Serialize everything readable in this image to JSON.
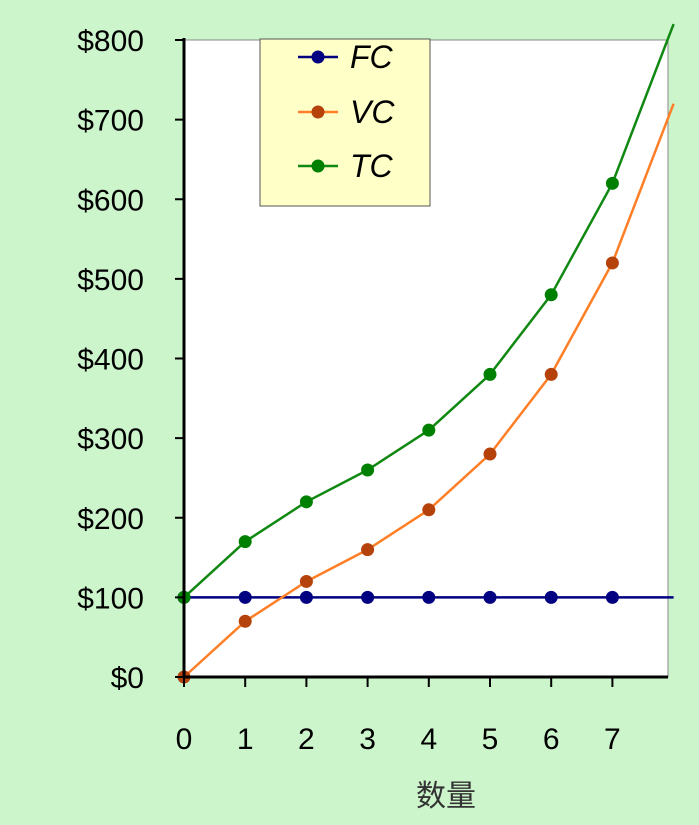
{
  "chart_data": {
    "type": "line",
    "xlabel": "数量",
    "ylabel": "",
    "x": [
      0,
      1,
      2,
      3,
      4,
      5,
      6,
      7
    ],
    "xlim": [
      0,
      8
    ],
    "ylim": [
      0,
      800
    ],
    "ytick_values": [
      0,
      100,
      200,
      300,
      400,
      500,
      600,
      700,
      800
    ],
    "ytick_labels": [
      "$0",
      "$100",
      "$200",
      "$300",
      "$400",
      "$500",
      "$600",
      "$700",
      "$800"
    ],
    "xtick_labels": [
      "0",
      "1",
      "2",
      "3",
      "4",
      "5",
      "6",
      "7"
    ],
    "grid": false,
    "legend_position": "top-left",
    "series": [
      {
        "name": "FC",
        "color": "#000080",
        "values": [
          100,
          100,
          100,
          100,
          100,
          100,
          100,
          100
        ],
        "line_extension": [
          8,
          100
        ]
      },
      {
        "name": "VC",
        "color": "#ff7f27",
        "marker_color": "#b5410b",
        "values": [
          0,
          70,
          120,
          160,
          210,
          280,
          380,
          520
        ],
        "line_extension": [
          8,
          720
        ]
      },
      {
        "name": "TC",
        "color": "#118811",
        "marker_color": "#008000",
        "values": [
          100,
          170,
          220,
          260,
          310,
          380,
          480,
          620
        ],
        "line_extension": [
          8,
          820
        ]
      }
    ]
  },
  "colors": {
    "background": "#ccf5cc",
    "plot_area": "#ffffff",
    "legend_background": "#ffffc8",
    "axis": "#000000"
  }
}
